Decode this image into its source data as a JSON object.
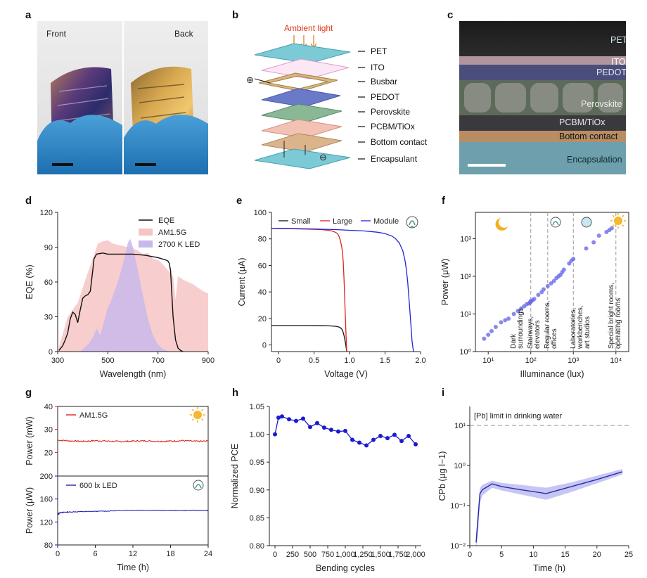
{
  "panel_labels": [
    "a",
    "b",
    "c",
    "d",
    "e",
    "f",
    "g",
    "h",
    "i"
  ],
  "panel_a": {
    "photo_labels": [
      "Front",
      "Back"
    ]
  },
  "panel_b": {
    "light_label": "Ambient light",
    "layers": [
      "PET",
      "ITO",
      "Busbar",
      "PEDOT",
      "Perovskite",
      "PCBM/TiOx",
      "Bottom contact",
      "Encapsulant"
    ],
    "terminal_pos": "⊕",
    "terminal_neg": "⊖"
  },
  "panel_c": {
    "layers": [
      "PET",
      "ITO",
      "PEDOT",
      "Perovskite",
      "PCBM/TiOx",
      "Bottom contact",
      "Encapsulation"
    ]
  },
  "chart_data": [
    {
      "id": "d",
      "type": "area",
      "xlabel": "Wavelength (nm)",
      "ylabel": "EQE (%)",
      "xlim": [
        300,
        900
      ],
      "ylim": [
        0,
        120
      ],
      "xticks": [
        300,
        500,
        700,
        900
      ],
      "yticks": [
        0,
        30,
        60,
        90,
        120
      ],
      "legend": [
        "EQE",
        "AM1.5G",
        "2700 K LED"
      ],
      "legend_position": "top-right",
      "colors": {
        "eqe": "#111111",
        "am15g": "#f7c4c4",
        "led": "#c9b8ea"
      },
      "series": [
        {
          "name": "EQE",
          "x": [
            305,
            320,
            330,
            340,
            350,
            360,
            370,
            380,
            390,
            400,
            410,
            420,
            430,
            440,
            445,
            455,
            480,
            500,
            550,
            600,
            650,
            700,
            730,
            740,
            745,
            750,
            755,
            760,
            770,
            780,
            790,
            800
          ],
          "y": [
            1,
            5,
            10,
            16,
            28,
            34,
            32,
            25,
            36,
            46,
            48,
            49,
            52,
            70,
            80,
            84,
            85,
            84,
            84,
            84,
            83,
            81,
            79,
            78,
            76,
            70,
            50,
            30,
            10,
            3,
            1,
            0
          ]
        },
        {
          "name": "AM1.5G",
          "x": [
            300,
            320,
            340,
            360,
            380,
            400,
            420,
            440,
            460,
            480,
            500,
            520,
            540,
            560,
            580,
            600,
            620,
            640,
            660,
            680,
            700,
            720,
            740,
            760,
            770,
            780,
            800,
            820,
            840,
            860,
            880,
            900
          ],
          "y": [
            0,
            15,
            30,
            36,
            42,
            55,
            68,
            80,
            93,
            95,
            96,
            93,
            92,
            91,
            90,
            89,
            87,
            84,
            85,
            80,
            79,
            75,
            70,
            65,
            45,
            65,
            62,
            60,
            58,
            55,
            52,
            50
          ]
        },
        {
          "name": "2700 K LED",
          "x": [
            390,
            400,
            420,
            440,
            455,
            470,
            490,
            500,
            510,
            520,
            540,
            560,
            580,
            590,
            600,
            620,
            640,
            660,
            680,
            700,
            720,
            740,
            760
          ],
          "y": [
            0,
            2,
            6,
            12,
            20,
            14,
            30,
            38,
            42,
            48,
            60,
            75,
            94,
            97,
            90,
            70,
            48,
            28,
            14,
            6,
            2,
            0.5,
            0
          ]
        }
      ]
    },
    {
      "id": "e",
      "type": "line",
      "xlabel": "Voltage (V)",
      "ylabel": "Current (μA)",
      "xlim": [
        -0.1,
        2.0
      ],
      "ylim": [
        -5,
        100
      ],
      "xticks": [
        0,
        0.5,
        1.0,
        1.5,
        2.0
      ],
      "xtick_labels": [
        "0",
        "0.5",
        "1.0",
        "1.5",
        "2.0"
      ],
      "yticks": [
        0,
        20,
        40,
        60,
        80,
        100
      ],
      "legend": [
        "Small",
        "Large",
        "Module"
      ],
      "legend_position": "top",
      "colors": {
        "Small": "#111111",
        "Large": "#e02020",
        "Module": "#2222dd"
      },
      "series": [
        {
          "name": "Small",
          "x": [
            -0.1,
            0,
            0.2,
            0.4,
            0.6,
            0.7,
            0.75,
            0.8,
            0.83,
            0.85,
            0.87,
            0.89,
            0.9,
            0.91,
            0.92,
            0.93,
            0.94,
            0.95,
            0.96
          ],
          "y": [
            14.6,
            14.6,
            14.6,
            14.6,
            14.5,
            14.4,
            14.3,
            14.1,
            13.8,
            13.5,
            13,
            12,
            11,
            9.5,
            7.5,
            5,
            2,
            -1,
            -5
          ]
        },
        {
          "name": "Large",
          "x": [
            -0.1,
            0,
            0.2,
            0.4,
            0.6,
            0.7,
            0.75,
            0.8,
            0.83,
            0.85,
            0.87,
            0.89,
            0.9,
            0.91,
            0.92,
            0.93,
            0.94,
            0.95,
            0.96
          ],
          "y": [
            88,
            87.8,
            87.6,
            87.3,
            87,
            86.5,
            86,
            85,
            84,
            82,
            79,
            74,
            70,
            63,
            52,
            38,
            22,
            8,
            -5
          ]
        },
        {
          "name": "Module",
          "x": [
            -0.1,
            0,
            0.2,
            0.5,
            0.8,
            1.0,
            1.2,
            1.4,
            1.5,
            1.6,
            1.65,
            1.7,
            1.75,
            1.78,
            1.8,
            1.82,
            1.84,
            1.86,
            1.88,
            1.9
          ],
          "y": [
            88,
            88,
            87.8,
            87.5,
            87,
            86.5,
            86,
            85,
            84,
            82,
            80,
            77,
            71,
            64,
            57,
            47,
            33,
            18,
            3,
            -5
          ]
        }
      ]
    },
    {
      "id": "f",
      "type": "scatter",
      "xlabel": "Illuminance (lux)",
      "ylabel": "Power (μW)",
      "xscale": "log",
      "yscale": "log",
      "xlim": [
        5,
        20000
      ],
      "ylim": [
        1,
        5000
      ],
      "xtick_labels": [
        "10¹",
        "10²",
        "10³",
        "10⁴"
      ],
      "ytick_labels": [
        "10⁰",
        "10¹",
        "10²",
        "10³"
      ],
      "dashed_vlines": [
        100,
        250,
        1000,
        10000
      ],
      "region_labels": [
        "Dark surroundings",
        "Stairways, elevators",
        "Regular rooms, offices",
        "Laboratories, workbenches, art studios",
        "Special bright rooms, operating rooms"
      ],
      "color": "#6a6ae8",
      "series": [
        {
          "name": "",
          "x": [
            8,
            10,
            12,
            15,
            20,
            25,
            30,
            40,
            50,
            60,
            70,
            80,
            90,
            95,
            100,
            100,
            110,
            120,
            150,
            180,
            200,
            250,
            300,
            350,
            400,
            450,
            500,
            550,
            600,
            800,
            900,
            1000,
            2000,
            3000,
            4000,
            6000,
            7000,
            8000
          ],
          "y": [
            2.2,
            2.8,
            3.5,
            4.5,
            6,
            6.8,
            7.5,
            10,
            12,
            14,
            16,
            18,
            19,
            20,
            21,
            22,
            23,
            25,
            32,
            38,
            45,
            55,
            65,
            75,
            90,
            100,
            110,
            130,
            150,
            220,
            260,
            290,
            550,
            800,
            1200,
            1500,
            1700,
            1900
          ]
        }
      ]
    },
    {
      "id": "g_top",
      "type": "line",
      "ylabel": "Power (mW)",
      "xlim": [
        0,
        24
      ],
      "ylim": [
        10,
        40
      ],
      "yticks": [
        20,
        30,
        40
      ],
      "legend": [
        "AM1.5G"
      ],
      "color": "#dd1111",
      "series": [
        {
          "name": "AM1.5G",
          "x": [
            0,
            2,
            4,
            6,
            8,
            10,
            12,
            14,
            16,
            18,
            20,
            22,
            24
          ],
          "y": [
            25.3,
            25,
            24.8,
            25.1,
            24.9,
            24.7,
            24.9,
            25,
            24.8,
            24.9,
            25.1,
            24.8,
            24.9
          ]
        }
      ]
    },
    {
      "id": "g_bottom",
      "type": "line",
      "xlabel": "Time (h)",
      "ylabel": "Power (μW)",
      "xlim": [
        0,
        24
      ],
      "ylim": [
        80,
        200
      ],
      "xticks": [
        0,
        6,
        12,
        18,
        24
      ],
      "yticks": [
        80,
        120,
        160,
        200
      ],
      "legend": [
        "600 lx LED"
      ],
      "color": "#1111aa",
      "series": [
        {
          "name": "600 lx LED",
          "x": [
            0,
            0.3,
            1,
            2,
            4,
            6,
            8,
            10,
            12,
            14,
            16,
            18,
            20,
            22,
            24
          ],
          "y": [
            133,
            136,
            137,
            137.5,
            138,
            138.5,
            139,
            140,
            140.5,
            140.5,
            140.2,
            140,
            140,
            140.2,
            140
          ]
        }
      ]
    },
    {
      "id": "h",
      "type": "line",
      "xlabel": "Bending cycles",
      "ylabel": "Normalized PCE",
      "xlim": [
        -80,
        2080
      ],
      "ylim": [
        0.8,
        1.05
      ],
      "xticks": [
        0,
        250,
        500,
        750,
        1000,
        1250,
        1500,
        1750,
        2000
      ],
      "xtick_labels": [
        "0",
        "250",
        "500",
        "750",
        "1,000",
        "1,250",
        "1,500",
        "1,750",
        "2,000"
      ],
      "yticks": [
        0.8,
        0.85,
        0.9,
        0.95,
        1.0,
        1.05
      ],
      "ytick_labels": [
        "0.80",
        "0.85",
        "0.90",
        "0.95",
        "1.00",
        "1.05"
      ],
      "color": "#1a1ad0",
      "series": [
        {
          "name": "",
          "x": [
            0,
            50,
            100,
            200,
            300,
            400,
            500,
            600,
            700,
            800,
            900,
            1000,
            1100,
            1200,
            1300,
            1400,
            1500,
            1600,
            1700,
            1800,
            1900,
            2000
          ],
          "y": [
            1.0,
            1.03,
            1.032,
            1.027,
            1.024,
            1.028,
            1.013,
            1.02,
            1.012,
            1.008,
            1.005,
            1.006,
            0.99,
            0.985,
            0.98,
            0.99,
            0.997,
            0.993,
            0.999,
            0.988,
            0.997,
            0.982
          ]
        }
      ]
    },
    {
      "id": "i",
      "type": "line",
      "xlabel": "Time (h)",
      "ylabel": "CPb (μg l−1)",
      "yscale": "log",
      "xlim": [
        0,
        25
      ],
      "ylim": [
        0.01,
        30
      ],
      "xticks": [
        0,
        5,
        10,
        15,
        20,
        25
      ],
      "ytick_labels": [
        "10⁻²",
        "10⁻¹",
        "10⁰",
        "10¹"
      ],
      "hline": {
        "value": 10,
        "label": "[Pb] limit in drinking water"
      },
      "color": "#2a2aa8",
      "band_color": "#b8b8f0",
      "series": [
        {
          "name": "",
          "x": [
            1,
            1.3,
            1.6,
            2,
            3.5,
            5,
            8,
            12,
            16,
            20,
            24
          ],
          "y": [
            0.012,
            0.05,
            0.2,
            0.25,
            0.35,
            0.3,
            0.25,
            0.2,
            0.3,
            0.45,
            0.7
          ],
          "lower": [
            0.008,
            0.02,
            0.12,
            0.18,
            0.28,
            0.24,
            0.19,
            0.14,
            0.22,
            0.36,
            0.6
          ],
          "upper": [
            0.02,
            0.09,
            0.28,
            0.33,
            0.42,
            0.37,
            0.33,
            0.28,
            0.38,
            0.56,
            0.82
          ]
        }
      ]
    }
  ]
}
